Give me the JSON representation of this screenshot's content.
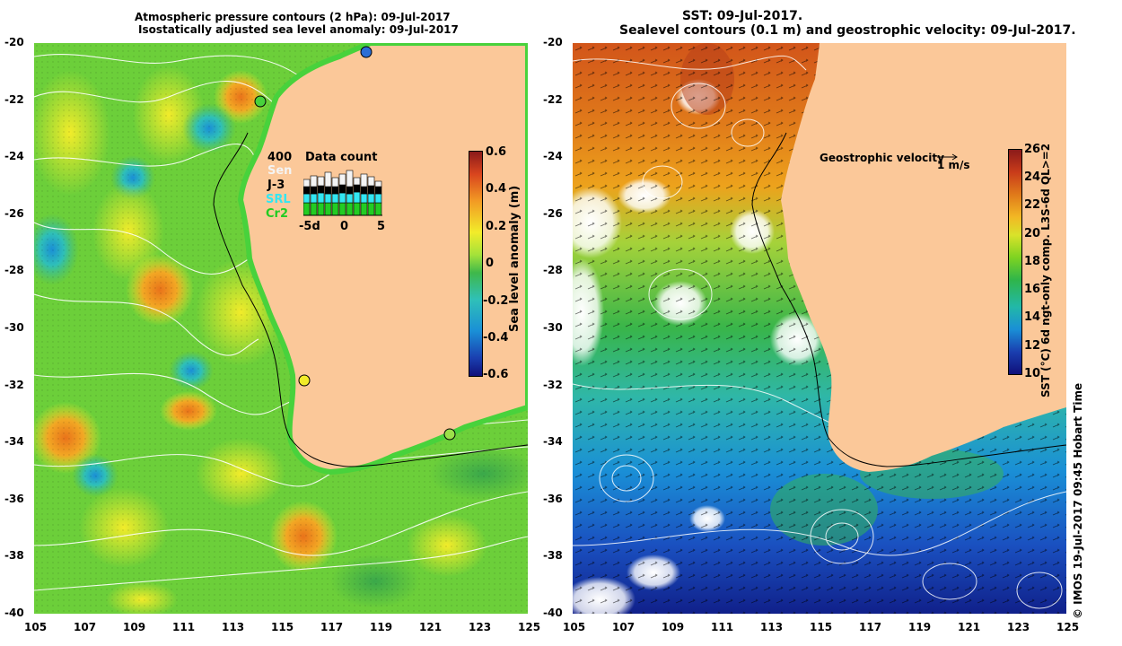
{
  "left_panel": {
    "title_line1": "Atmospheric pressure contours (2 hPa): 09-Jul-2017",
    "title_line2": "Isostatically adjusted sea level anomaly: 09-Jul-2017",
    "colorbar": {
      "label": "Sea level anomaly (m)",
      "ticks": [
        "0.6",
        "0.4",
        "0.2",
        "0",
        "-0.2",
        "-0.4",
        "-0.6"
      ],
      "range": [
        -0.6,
        0.6
      ]
    },
    "data_count": {
      "title": "Data count",
      "scale_label": "400",
      "legend": [
        {
          "label": "Sen",
          "color": "#f4f4f4"
        },
        {
          "label": "J-3",
          "color": "#000000"
        },
        {
          "label": "SRL",
          "color": "#33e6f2"
        },
        {
          "label": "Cr2",
          "color": "#22cc22"
        }
      ],
      "x_ticks": [
        "-5d",
        "0",
        "5"
      ]
    }
  },
  "right_panel": {
    "title_line1": "SST: 09-Jul-2017.",
    "title_line2": "Sealevel contours (0.1 m) and geostrophic velocity: 09-Jul-2017.",
    "velocity_legend": "Geostrophic velocity",
    "velocity_unit": "1 m/s",
    "colorbar": {
      "label": "SST (°C) 6d ngt-only comp. L3S-6d QL>=2",
      "ticks": [
        "26",
        "24",
        "22",
        "20",
        "18",
        "16",
        "14",
        "12",
        "10"
      ],
      "range": [
        10,
        26
      ]
    }
  },
  "axes": {
    "lat_ticks": [
      "-20",
      "-22",
      "-24",
      "-26",
      "-28",
      "-30",
      "-32",
      "-34",
      "-36",
      "-38",
      "-40"
    ],
    "lon_ticks": [
      "105",
      "107",
      "109",
      "111",
      "113",
      "115",
      "117",
      "119",
      "121",
      "123",
      "125"
    ]
  },
  "credit": "© IMOS 19-Jul-2017 09:45 Hobart Time",
  "colors": {
    "land": "#fbc899",
    "sla_green": "#7ed321",
    "sst_orange": "#e07a1a",
    "contour_white": "#ffffff"
  }
}
